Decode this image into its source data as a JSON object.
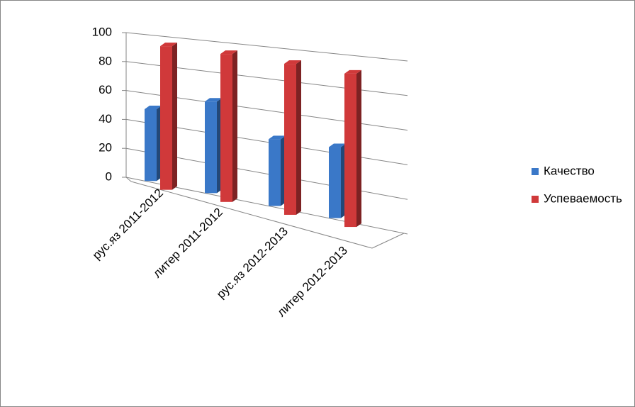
{
  "chart_data": {
    "type": "bar3d",
    "categories": [
      "рус.яз 2011-2012",
      "литер 2011-2012",
      "рус.яз 2012-2013",
      "литер 2012-2013"
    ],
    "series": [
      {
        "name": "Качество",
        "color": "#3a78c8",
        "values": [
          49,
          60,
          42,
          43
        ]
      },
      {
        "name": "Успеваемость",
        "color": "#d0393a",
        "values": [
          97,
          96,
          94,
          92
        ]
      }
    ],
    "ylim": [
      0,
      100
    ],
    "yticks": [
      0,
      20,
      40,
      60,
      80,
      100
    ],
    "grid": true,
    "legend": "right"
  }
}
